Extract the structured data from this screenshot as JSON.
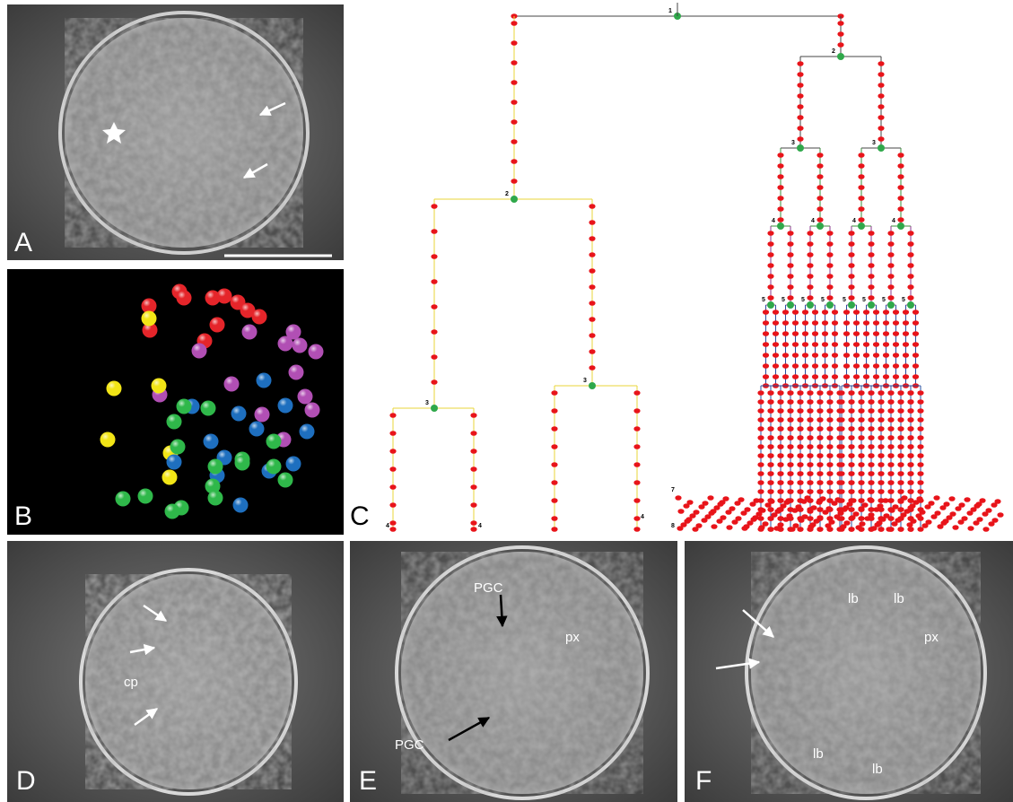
{
  "panel_labels": [
    "A",
    "B",
    "C",
    "D",
    "E",
    "F"
  ],
  "panel_c": {
    "generation_labels": [
      "1",
      "2",
      "3",
      "4",
      "5",
      "6",
      "7",
      "8"
    ]
  },
  "panel_d": {
    "labels": [
      "cp"
    ]
  },
  "panel_e": {
    "labels": [
      "PGC",
      "PGC",
      "px"
    ]
  },
  "panel_f": {
    "labels": [
      "lb",
      "lb",
      "px",
      "lb",
      "lb"
    ]
  }
}
